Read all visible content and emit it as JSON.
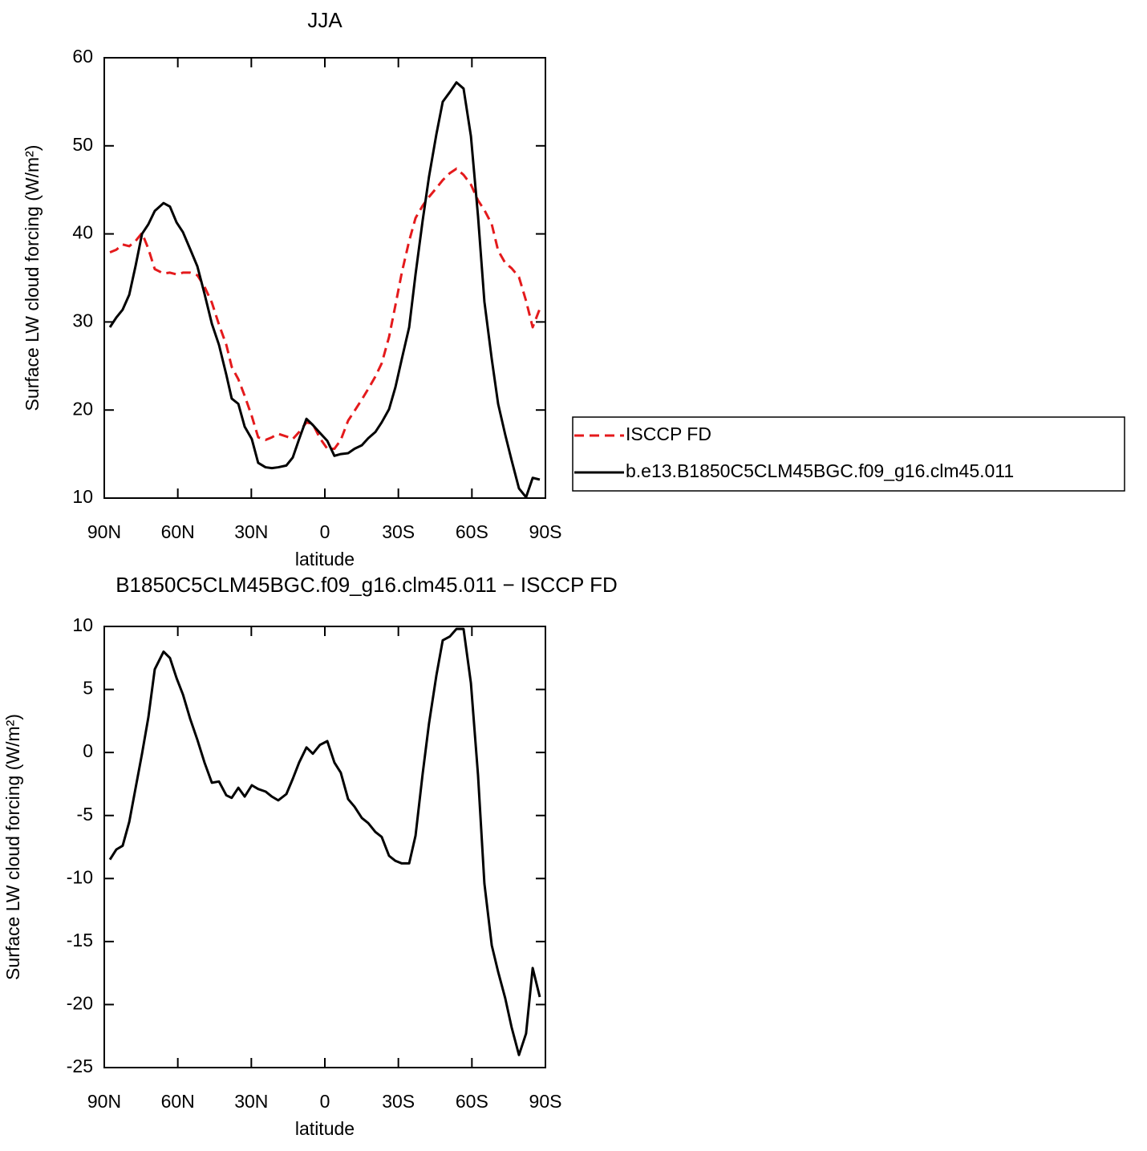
{
  "chart_data": [
    {
      "type": "line",
      "title": "JJA",
      "x_label": "latitude",
      "y_label": "Surface LW cloud forcing (W/m²)",
      "x": [
        87.7,
        85.1,
        82.5,
        79.8,
        77.2,
        74.6,
        72.0,
        69.4,
        65.8,
        63.2,
        60.5,
        57.9,
        55.0,
        52.0,
        49.1,
        46.1,
        43.2,
        40.2,
        38.0,
        35.3,
        32.7,
        29.8,
        27.2,
        24.2,
        21.6,
        19.0,
        15.7,
        13.1,
        10.5,
        7.5,
        4.9,
        2.0,
        -1.0,
        -3.9,
        -6.5,
        -9.5,
        -12.1,
        -15.1,
        -17.7,
        -20.6,
        -23.2,
        -26.2,
        -28.8,
        -31.4,
        -34.4,
        -37.0,
        -39.9,
        -42.5,
        -45.5,
        -48.1,
        -51.0,
        -53.7,
        -56.6,
        -59.6,
        -62.5,
        -65.1,
        -68.1,
        -70.7,
        -73.6,
        -76.2,
        -79.2,
        -82.1,
        -84.8,
        -87.7
      ],
      "xlim": [
        90,
        -90
      ],
      "xticks": [
        {
          "value": 90,
          "label": "90N"
        },
        {
          "value": 60,
          "label": "60N"
        },
        {
          "value": 30,
          "label": "30N"
        },
        0,
        {
          "value": -30,
          "label": "30S"
        },
        {
          "value": -60,
          "label": "60S"
        },
        {
          "value": -90,
          "label": "90S"
        }
      ],
      "ylim": [
        10,
        60
      ],
      "yticks": [
        10,
        20,
        30,
        40,
        50,
        60
      ],
      "legend": "right",
      "series": [
        {
          "name": "ISCCP FD",
          "color": "#e41a1c",
          "linestyle": "dashed",
          "values": [
            37.9,
            38.2,
            38.8,
            38.6,
            39.2,
            40.1,
            38.3,
            36.0,
            35.5,
            35.6,
            35.4,
            35.6,
            35.6,
            35.3,
            34.0,
            32.2,
            29.7,
            27.4,
            24.9,
            23.5,
            21.6,
            19.3,
            16.9,
            16.6,
            16.9,
            17.3,
            17.0,
            16.7,
            17.5,
            18.6,
            18.4,
            16.8,
            15.6,
            15.6,
            16.6,
            18.8,
            19.9,
            21.2,
            22.4,
            23.8,
            25.3,
            28.3,
            31.9,
            35.6,
            39.2,
            41.8,
            43.2,
            44.2,
            45.2,
            46.1,
            46.9,
            47.4,
            46.7,
            45.6,
            43.8,
            42.7,
            41.1,
            38.1,
            36.7,
            36.1,
            35.1,
            32.4,
            29.4,
            31.5
          ]
        },
        {
          "name": "b.e13.B1850C5CLM45BGC.f09_g16.clm45.011",
          "color": "#000000",
          "linestyle": "solid",
          "values": [
            29.4,
            30.5,
            31.4,
            33.1,
            36.4,
            40.0,
            41.1,
            42.6,
            43.5,
            43.1,
            41.3,
            40.2,
            38.3,
            36.3,
            33.2,
            29.8,
            27.4,
            24.0,
            21.3,
            20.7,
            18.1,
            16.7,
            14.0,
            13.5,
            13.4,
            13.5,
            13.7,
            14.6,
            16.7,
            19.0,
            18.3,
            17.4,
            16.5,
            14.8,
            15.0,
            15.1,
            15.6,
            16.0,
            16.8,
            17.5,
            18.6,
            20.1,
            22.6,
            25.8,
            29.4,
            35.4,
            41.5,
            46.5,
            51.3,
            55.0,
            56.1,
            57.2,
            56.5,
            51.1,
            42.0,
            32.3,
            25.8,
            20.7,
            17.2,
            14.3,
            11.1,
            10.1,
            12.3,
            12.1
          ]
        }
      ]
    },
    {
      "type": "line",
      "title": "B1850C5CLM45BGC.f09_g16.clm45.011 − ISCCP FD",
      "x_label": "latitude",
      "y_label": "Surface LW cloud forcing (W/m²)",
      "x": [
        87.7,
        85.1,
        82.5,
        79.8,
        77.2,
        74.6,
        72.0,
        69.4,
        65.8,
        63.2,
        60.5,
        57.9,
        55.0,
        52.0,
        49.1,
        46.1,
        43.2,
        40.2,
        38.0,
        35.3,
        32.7,
        29.8,
        27.2,
        24.2,
        21.6,
        19.0,
        15.7,
        13.1,
        10.5,
        7.5,
        4.9,
        2.0,
        -1.0,
        -3.9,
        -6.5,
        -9.5,
        -12.1,
        -15.1,
        -17.7,
        -20.6,
        -23.2,
        -26.2,
        -28.8,
        -31.4,
        -34.4,
        -37.0,
        -39.9,
        -42.5,
        -45.5,
        -48.1,
        -51.0,
        -53.7,
        -56.6,
        -59.6,
        -62.5,
        -65.1,
        -68.1,
        -70.7,
        -73.6,
        -76.2,
        -79.2,
        -82.1,
        -84.8,
        -87.7
      ],
      "xlim": [
        90,
        -90
      ],
      "xticks": [
        {
          "value": 90,
          "label": "90N"
        },
        {
          "value": 60,
          "label": "60N"
        },
        {
          "value": 30,
          "label": "30N"
        },
        0,
        {
          "value": -30,
          "label": "30S"
        },
        {
          "value": -60,
          "label": "60S"
        },
        {
          "value": -90,
          "label": "90S"
        }
      ],
      "ylim": [
        -25,
        10
      ],
      "yticks": [
        -25,
        -20,
        -15,
        -10,
        -5,
        0,
        5,
        10
      ],
      "series": [
        {
          "color": "#000000",
          "linestyle": "solid",
          "values": [
            -8.5,
            -7.7,
            -7.4,
            -5.5,
            -2.8,
            -0.1,
            2.8,
            6.6,
            8.0,
            7.5,
            5.9,
            4.6,
            2.7,
            1.0,
            -0.8,
            -2.4,
            -2.3,
            -3.4,
            -3.6,
            -2.8,
            -3.5,
            -2.6,
            -2.9,
            -3.1,
            -3.5,
            -3.8,
            -3.3,
            -2.1,
            -0.8,
            0.4,
            -0.1,
            0.6,
            0.9,
            -0.8,
            -1.6,
            -3.7,
            -4.3,
            -5.2,
            -5.6,
            -6.3,
            -6.7,
            -8.2,
            -8.6,
            -8.8,
            -8.8,
            -6.6,
            -1.7,
            2.3,
            6.1,
            8.9,
            9.2,
            9.8,
            9.8,
            5.5,
            -1.8,
            -10.4,
            -15.3,
            -17.4,
            -19.5,
            -21.8,
            -24.0,
            -22.3,
            -17.1,
            -19.4
          ]
        }
      ]
    }
  ]
}
